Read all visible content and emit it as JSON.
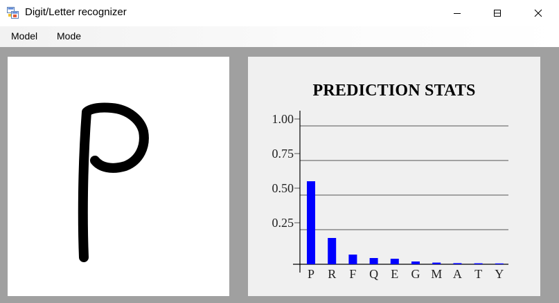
{
  "window": {
    "title": "Digit/Letter recognizer",
    "app_icon": "windows-app-icon",
    "controls": [
      "minimize-icon",
      "maximize-icon",
      "close-icon"
    ]
  },
  "menu": {
    "items": [
      {
        "label": "Model"
      },
      {
        "label": "Mode"
      }
    ]
  },
  "canvas": {
    "drawn_character": "P"
  },
  "stats": {
    "title": "PREDICTION STATS"
  },
  "chart_data": {
    "type": "bar",
    "title": "PREDICTION STATS",
    "xlabel": "",
    "ylabel": "",
    "categories": [
      "P",
      "R",
      "F",
      "Q",
      "E",
      "G",
      "M",
      "A",
      "T",
      "Y"
    ],
    "values": [
      0.6,
      0.19,
      0.07,
      0.045,
      0.04,
      0.02,
      0.012,
      0.008,
      0.007,
      0.006
    ],
    "ylim": [
      0,
      1.0
    ],
    "yticks": [
      "1.00",
      "0.75",
      "0.50",
      "0.25"
    ],
    "grid": true,
    "bar_color": "#0000ff"
  }
}
